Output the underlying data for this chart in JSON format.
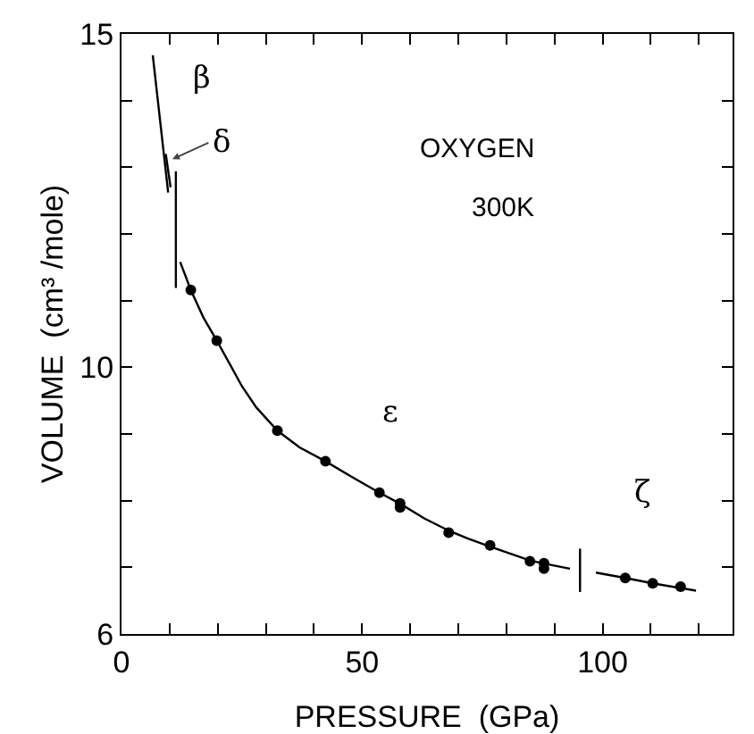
{
  "chart_data": {
    "type": "scatter",
    "xlabel": "PRESSURE  (GPa)",
    "ylabel": "VOLUME  (cm³ /mole)",
    "xlim": [
      0,
      127
    ],
    "ylim": [
      6,
      15
    ],
    "xticks": [
      0,
      {
        "value": 10,
        "label": null
      },
      {
        "value": 20,
        "label": null
      },
      {
        "value": 30,
        "label": null
      },
      {
        "value": 40,
        "label": null
      },
      50,
      {
        "value": 60,
        "label": null
      },
      {
        "value": 70,
        "label": null
      },
      {
        "value": 80,
        "label": null
      },
      {
        "value": 90,
        "label": null
      },
      100,
      {
        "value": 110,
        "label": null
      },
      {
        "value": 120,
        "label": null
      }
    ],
    "yticks": [
      6,
      {
        "value": 7,
        "label": null
      },
      {
        "value": 8,
        "label": null
      },
      {
        "value": 9,
        "label": null
      },
      10,
      {
        "value": 11,
        "label": null
      },
      {
        "value": 12,
        "label": null
      },
      {
        "value": 13,
        "label": null
      },
      {
        "value": 14,
        "label": null
      },
      15
    ],
    "grid": false,
    "marker": "circle",
    "line_style": "solid",
    "series": [
      {
        "color": "#000000",
        "x": [
          14.4,
          19.8,
          32.4,
          42.4,
          53.6,
          57.9,
          57.9,
          68,
          76.6,
          84.9,
          87.8,
          87.8
        ],
        "values": [
          11.16,
          10.4,
          9.05,
          8.59,
          8.12,
          7.96,
          7.9,
          7.52,
          7.33,
          7.09,
          7.06,
          6.98
        ]
      },
      {
        "color": "#000000",
        "x": [
          104.7,
          110.4,
          116.2
        ],
        "values": [
          6.84,
          6.76,
          6.71
        ]
      },
      {
        "type": "line",
        "marker": "none",
        "color": "#000000",
        "x": [
          12.2,
          14.4,
          17,
          19.8,
          22.5,
          25,
          28,
          32.4,
          37,
          42.4,
          48,
          53.6,
          58,
          63,
          68,
          72,
          76.6,
          81,
          85,
          89,
          93.2
        ],
        "values": [
          11.58,
          11.16,
          10.75,
          10.4,
          10.05,
          9.72,
          9.4,
          9.05,
          8.8,
          8.59,
          8.35,
          8.12,
          7.95,
          7.73,
          7.55,
          7.43,
          7.31,
          7.2,
          7.1,
          7.04,
          6.98
        ]
      },
      {
        "type": "line",
        "marker": "none",
        "color": "#000000",
        "x": [
          98.6,
          104.7,
          110.4,
          119.4
        ],
        "values": [
          6.92,
          6.84,
          6.76,
          6.65
        ]
      },
      {
        "type": "line",
        "marker": "none",
        "color": "#000000",
        "x": [
          6.5,
          9.7
        ],
        "values": [
          14.68,
          12.62
        ]
      },
      {
        "type": "line",
        "marker": "none",
        "color": "#000000",
        "x": [
          9.2,
          10.2
        ],
        "values": [
          13.2,
          12.7
        ]
      },
      {
        "type": "line",
        "marker": "none",
        "color": "#000000",
        "x": [
          11.3,
          11.3
        ],
        "values": [
          12.94,
          11.19
        ]
      },
      {
        "type": "line",
        "marker": "none",
        "color": "#000000",
        "x": [
          95.3,
          95.3
        ],
        "values": [
          7.28,
          6.63
        ]
      }
    ],
    "annotations": [
      "β",
      {
        "text": "δ",
        "x": 9.9,
        "y": 13.1
      },
      "ε",
      "ζ",
      "OXYGEN",
      "300K"
    ]
  }
}
